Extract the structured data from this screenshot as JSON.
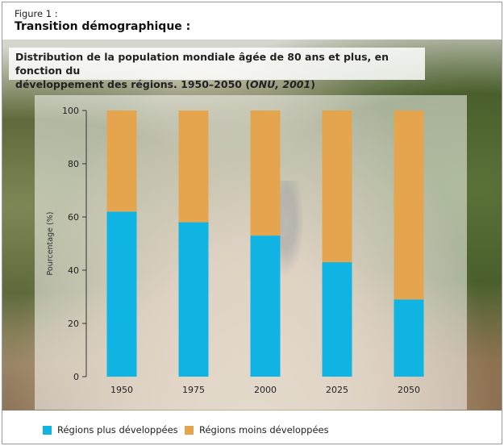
{
  "figure": {
    "label": "Figure 1 :",
    "title": "Transition démographique :",
    "subtitle_line1": "Distribution de la population mondiale âgée de 80 ans et plus, en fonction du",
    "subtitle_line2_text": "développement des régions. 1950–2050 (",
    "subtitle_source": "ONU, 2001",
    "subtitle_line2_end": ")"
  },
  "colors": {
    "more_developed": "#0fb4e3",
    "less_developed": "#e5a54e"
  },
  "chart_data": {
    "type": "bar",
    "stacked": true,
    "categories": [
      "1950",
      "1975",
      "2000",
      "2025",
      "2050"
    ],
    "series": [
      {
        "name": "Régions plus développées",
        "values": [
          62,
          58,
          53,
          43,
          29
        ]
      },
      {
        "name": "Régions moins développées",
        "values": [
          38,
          42,
          47,
          57,
          71
        ]
      }
    ],
    "ylabel": "Pourcentage (%)",
    "ylim": [
      0,
      100
    ],
    "yticks": [
      0,
      20,
      40,
      60,
      80,
      100
    ],
    "legend_position": "bottom"
  }
}
